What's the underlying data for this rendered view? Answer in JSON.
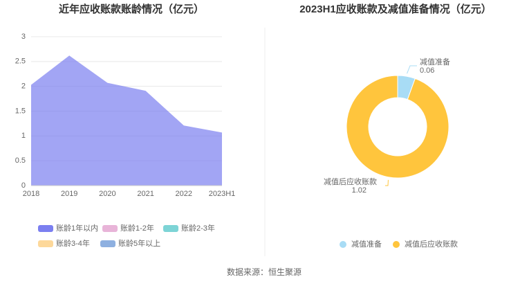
{
  "chart_data": [
    {
      "type": "area",
      "title": "近年应收账款账龄情况（亿元）",
      "categories": [
        "2018",
        "2019",
        "2020",
        "2021",
        "2022",
        "2023H1"
      ],
      "series": [
        {
          "name": "账龄1年以内",
          "color": "#7b7ff0",
          "values": [
            2.03,
            2.62,
            2.07,
            1.91,
            1.21,
            1.07
          ]
        },
        {
          "name": "账龄1-2年",
          "color": "#e8b4d8",
          "values": [
            0,
            0,
            0,
            0,
            0,
            0
          ]
        },
        {
          "name": "账龄2-3年",
          "color": "#7dd4d6",
          "values": [
            0,
            0,
            0,
            0,
            0,
            0
          ]
        },
        {
          "name": "账龄3-4年",
          "color": "#fdd89a",
          "values": [
            0,
            0,
            0,
            0,
            0,
            0
          ]
        },
        {
          "name": "账龄5年以上",
          "color": "#8eb0e0",
          "values": [
            0,
            0,
            0,
            0,
            0,
            0
          ]
        }
      ],
      "ylim": [
        0,
        3
      ],
      "yticks": [
        0,
        0.5,
        1,
        1.5,
        2,
        2.5,
        3
      ],
      "grid": true,
      "legend": "bottom"
    },
    {
      "type": "pie",
      "title": "2023H1应收账款及减值准备情况（亿元）",
      "donut": true,
      "categories": [
        "减值准备",
        "减值后应收账款"
      ],
      "values": [
        0.06,
        1.02
      ],
      "colors": [
        "#a8dcf5",
        "#ffc53d"
      ],
      "legend": "bottom"
    }
  ],
  "source": "数据来源：恒生聚源"
}
